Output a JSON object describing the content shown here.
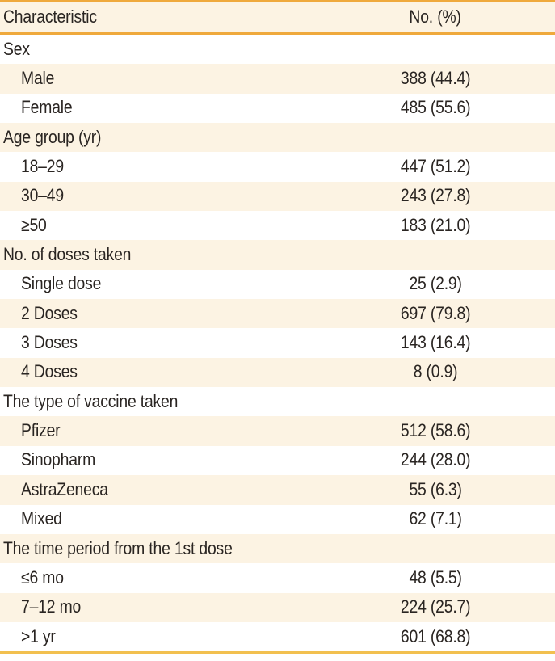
{
  "theme": {
    "accent_gold": "#EFA93C",
    "bottom_line_gold": "#F2C04F",
    "row_stripe": "#FCF3E3",
    "text_color": "#2A2522",
    "page_bg": "#FFFFFF"
  },
  "table": {
    "columns": [
      "Characteristic",
      "No. (%)"
    ],
    "rows": [
      {
        "label": "Sex",
        "value": "",
        "type": "section"
      },
      {
        "label": "Male",
        "value": "388 (44.4)",
        "type": "item"
      },
      {
        "label": "Female",
        "value": "485 (55.6)",
        "type": "item"
      },
      {
        "label": "Age group (yr)",
        "value": "",
        "type": "section"
      },
      {
        "label": "18–29",
        "value": "447 (51.2)",
        "type": "item"
      },
      {
        "label": "30–49",
        "value": "243 (27.8)",
        "type": "item"
      },
      {
        "label": "≥50",
        "value": "183 (21.0)",
        "type": "item"
      },
      {
        "label": "No. of doses taken",
        "value": "",
        "type": "section"
      },
      {
        "label": "Single dose",
        "value": "25 (2.9)",
        "type": "item"
      },
      {
        "label": "2 Doses",
        "value": "697 (79.8)",
        "type": "item"
      },
      {
        "label": "3 Doses",
        "value": "143 (16.4)",
        "type": "item"
      },
      {
        "label": "4 Doses",
        "value": "8 (0.9)",
        "type": "item"
      },
      {
        "label": "The type of vaccine taken",
        "value": "",
        "type": "section"
      },
      {
        "label": "Pfizer",
        "value": "512 (58.6)",
        "type": "item"
      },
      {
        "label": "Sinopharm",
        "value": "244 (28.0)",
        "type": "item"
      },
      {
        "label": "AstraZeneca",
        "value": "55 (6.3)",
        "type": "item"
      },
      {
        "label": "Mixed",
        "value": "62 (7.1)",
        "type": "item"
      },
      {
        "label": "The time period from the 1st dose",
        "value": "",
        "type": "section"
      },
      {
        "label": "≤6 mo",
        "value": "48 (5.5)",
        "type": "item"
      },
      {
        "label": "7–12 mo",
        "value": "224 (25.7)",
        "type": "item"
      },
      {
        "label": ">1 yr",
        "value": "601 (68.8)",
        "type": "item"
      }
    ]
  }
}
